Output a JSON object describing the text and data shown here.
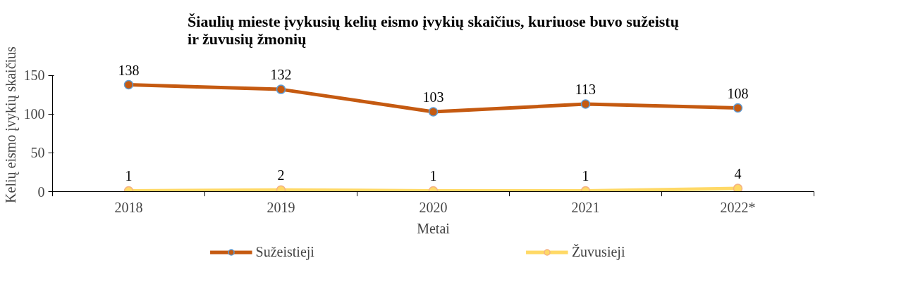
{
  "chart_data": {
    "type": "line",
    "title": "Šiaulių mieste įvykusių kelių eismo įvykių skaičius, kuriuose buvo sužeistų\nir žuvusių žmonių",
    "xlabel": "Metai",
    "ylabel": "Kelių eismo įvykių skaičius",
    "categories": [
      "2018",
      "2019",
      "2020",
      "2021",
      "2022*"
    ],
    "series": [
      {
        "name": "Sužeistieji",
        "color": "#c55a11",
        "values": [
          138,
          132,
          103,
          113,
          108
        ]
      },
      {
        "name": "Žuvusieji",
        "color": "#ffd966",
        "values": [
          1,
          2,
          1,
          1,
          4
        ]
      }
    ],
    "ylim": [
      0,
      150
    ],
    "yticks": [
      0,
      50,
      100,
      150
    ],
    "grid": false,
    "legend": "bottom",
    "marker": "circle",
    "line_style": "solid",
    "data_labels": true
  }
}
